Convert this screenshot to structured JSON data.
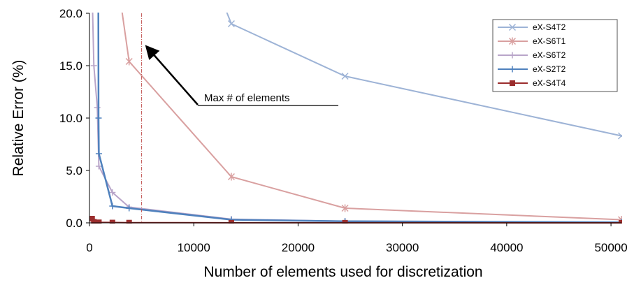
{
  "chart_data": {
    "type": "line",
    "title": "",
    "xlabel": "Number of elements used for discretization",
    "ylabel": "Relative Error (%)",
    "xlim": [
      0,
      51000
    ],
    "ylim": [
      0,
      20
    ],
    "xticks": [
      0,
      10000,
      20000,
      30000,
      40000,
      50000
    ],
    "xtick_labels": [
      "0",
      "10000",
      "20000",
      "30000",
      "40000",
      "50000"
    ],
    "yticks": [
      0,
      5,
      10,
      15,
      20
    ],
    "ytick_labels": [
      "0.0",
      "5.0",
      "10.0",
      "15.0",
      "20.0"
    ],
    "grid": false,
    "legend_position": "top-right",
    "series": [
      {
        "name": "eX-S4T2",
        "color": "#9db3d6",
        "marker": "x",
        "x": [
          12800,
          13600,
          24500,
          51000
        ],
        "y": [
          21,
          19.0,
          14.0,
          8.3
        ]
      },
      {
        "name": "eX-S6T1",
        "color": "#d9a0a0",
        "marker": "asterisk",
        "x": [
          3000,
          3800,
          13600,
          24500,
          51000
        ],
        "y": [
          21,
          15.4,
          4.4,
          1.4,
          0.3
        ]
      },
      {
        "name": "eX-S6T2",
        "color": "#b9a5c9",
        "marker": "plus",
        "x": [
          280,
          420,
          750,
          900,
          2200,
          3800,
          13600,
          24500,
          51000
        ],
        "y": [
          21,
          15.0,
          11.0,
          5.4,
          2.9,
          1.5,
          0.35,
          0.15,
          0.05
        ]
      },
      {
        "name": "eX-S2T2",
        "color": "#4f81bd",
        "marker": "plus",
        "x": [
          850,
          870,
          900,
          2200,
          3800,
          13600,
          24500,
          51000
        ],
        "y": [
          21,
          10.0,
          6.6,
          1.6,
          1.4,
          0.3,
          0.15,
          0.05
        ]
      },
      {
        "name": "eX-S4T4",
        "color": "#9b2d2d",
        "marker": "square",
        "x": [
          250,
          420,
          900,
          2200,
          3800,
          13600,
          24500,
          51000
        ],
        "y": [
          0.4,
          0.1,
          0.05,
          0.03,
          0.02,
          0.01,
          0.01,
          0.0
        ]
      }
    ],
    "annotations": [
      {
        "text": "Max # of elements",
        "vline_x": 5000,
        "arrow_tip": {
          "x": 5000,
          "y": 17.0
        }
      }
    ]
  }
}
